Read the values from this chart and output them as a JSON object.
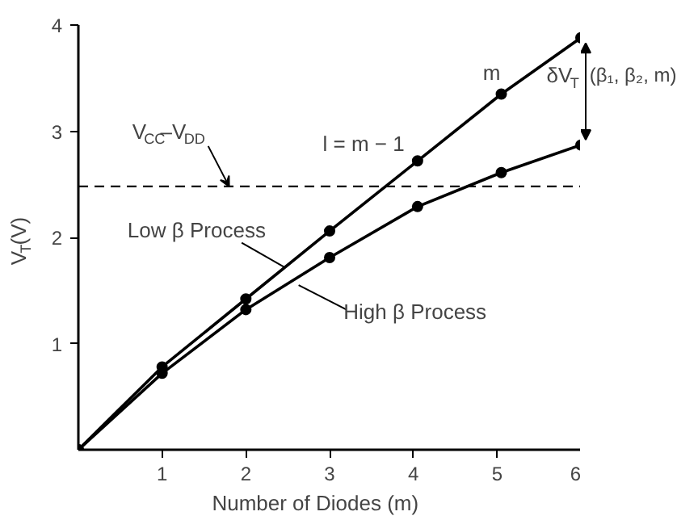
{
  "chart_data": {
    "type": "line",
    "xlabel": "Number of Diodes (m)",
    "ylabel": "V$_{T}$(V)",
    "xlim": [
      0,
      6
    ],
    "ylim": [
      0,
      4
    ],
    "xticks": [
      1,
      2,
      3,
      4,
      5,
      6
    ],
    "yticks": [
      1,
      2,
      3,
      4
    ],
    "series": [
      {
        "name": "Low β Process",
        "color": "#000000",
        "x": [
          0,
          1,
          2,
          3,
          4.05,
          5.05,
          6
        ],
        "values": [
          0,
          0.78,
          1.42,
          2.06,
          2.72,
          3.35,
          3.88
        ]
      },
      {
        "name": "High β Process",
        "color": "#000000",
        "x": [
          0,
          1,
          2,
          3,
          4.05,
          5.05,
          6
        ],
        "values": [
          0,
          0.72,
          1.32,
          1.81,
          2.29,
          2.61,
          2.87
        ]
      }
    ],
    "marker": "circle",
    "line_style": "solid",
    "ref_lines": [
      {
        "axis": "y",
        "value": 2.48,
        "label": "V$_{CC}$–V$_{DD}$",
        "line_style": "dashed",
        "color": "#000000"
      }
    ],
    "annotations": [
      "l = m − 1",
      "m",
      "δV$_{T}$ (β₁, β₂, m)"
    ]
  }
}
